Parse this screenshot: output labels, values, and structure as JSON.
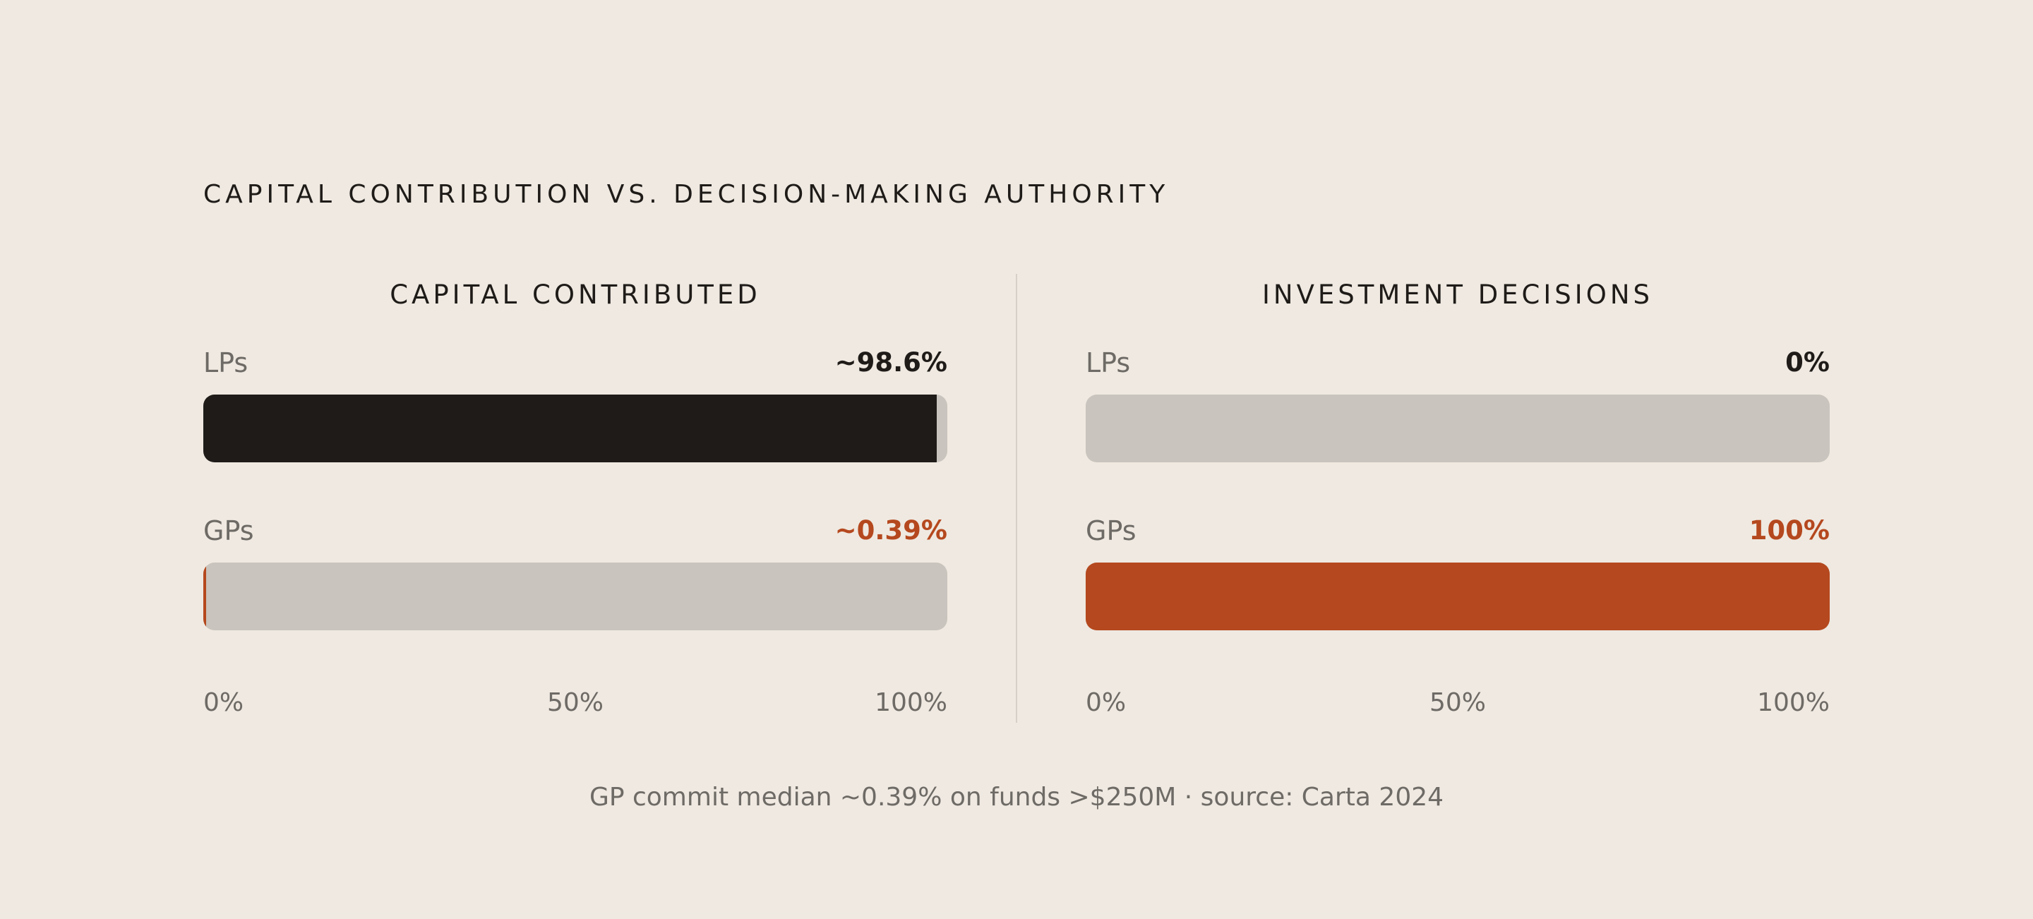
{
  "title": "CAPITAL CONTRIBUTION VS. DECISION-MAKING AUTHORITY",
  "footnote": "GP commit median ~0.39% on funds >$250M · source: Carta 2024",
  "colors": {
    "background": "#efe9e1",
    "lp_fill": "#1e1b18",
    "gp_fill": "#b5481e",
    "track": "#c9c4bd",
    "lp_value_text": "#1e1b18",
    "gp_value_text": "#b5481e"
  },
  "chart_data": [
    {
      "type": "bar",
      "orientation": "horizontal",
      "title": "CAPITAL CONTRIBUTED",
      "categories": [
        "LPs",
        "GPs"
      ],
      "values": [
        98.6,
        0.39
      ],
      "value_labels": [
        "~98.6%",
        "~0.39%"
      ],
      "unit": "%",
      "xlim": [
        0,
        100
      ],
      "ticks": [
        "0%",
        "50%",
        "100%"
      ],
      "grid": false
    },
    {
      "type": "bar",
      "orientation": "horizontal",
      "title": "INVESTMENT DECISIONS",
      "categories": [
        "LPs",
        "GPs"
      ],
      "values": [
        0,
        100
      ],
      "value_labels": [
        "0%",
        "100%"
      ],
      "unit": "%",
      "xlim": [
        0,
        100
      ],
      "ticks": [
        "0%",
        "50%",
        "100%"
      ],
      "grid": false
    }
  ]
}
